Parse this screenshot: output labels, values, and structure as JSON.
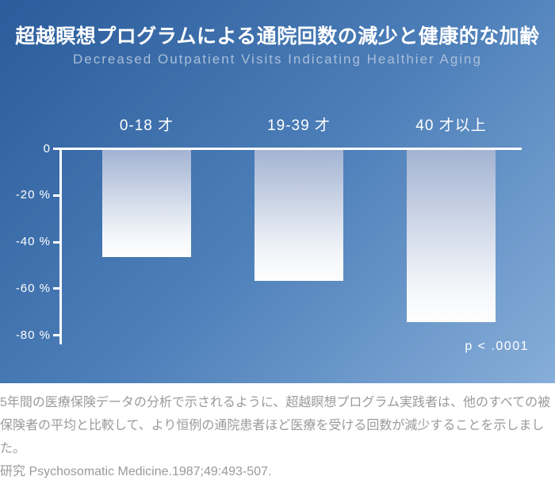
{
  "header": {
    "title": "超越瞑想プログラムによる通院回数の減少と健康的な加齢",
    "subtitle": "Decreased Outpatient Visits Indicating Healthier Aging"
  },
  "chart_data": {
    "type": "bar",
    "title": "超越瞑想プログラムによる通院回数の減少と健康的な加齢",
    "subtitle": "Decreased Outpatient Visits Indicating Healthier Aging",
    "categories": [
      "0-18 才",
      "19-39 才",
      "40 才以上"
    ],
    "values": [
      -46,
      -56,
      -74
    ],
    "unit": "%",
    "xlabel": "",
    "ylabel": "",
    "ylim": [
      -84,
      0
    ],
    "yticks": [
      0,
      -20,
      -40,
      -60,
      -80
    ],
    "ytick_labels": [
      "0",
      "-20 %",
      "-40 %",
      "-60 %",
      "-80 %"
    ],
    "grid": false,
    "legend": false,
    "annotation": "p < .0001",
    "bar_color_top": "#a3b3d2",
    "bar_color_bottom": "#fefefe",
    "background_gradient": [
      "#2b5c9b",
      "#87aed9"
    ],
    "axis_color": "#ffffff"
  },
  "footer": {
    "body": "5年間の医療保険データの分析で示されるように、超越瞑想プログラム実践者は、他のすべての被保険者の平均と比較して、より恒例の通院患者ほど医療を受ける回数が減少することを示しました。",
    "reference": "研究 Psychosomatic Medicine.1987;49:493-507."
  },
  "colors": {
    "panel_gradient_start": "#2b5c9b",
    "panel_gradient_end": "#87aed9",
    "title_text": "#ffffff",
    "subtitle_text": "#a9bed9",
    "footer_text": "#9a9a9a"
  }
}
